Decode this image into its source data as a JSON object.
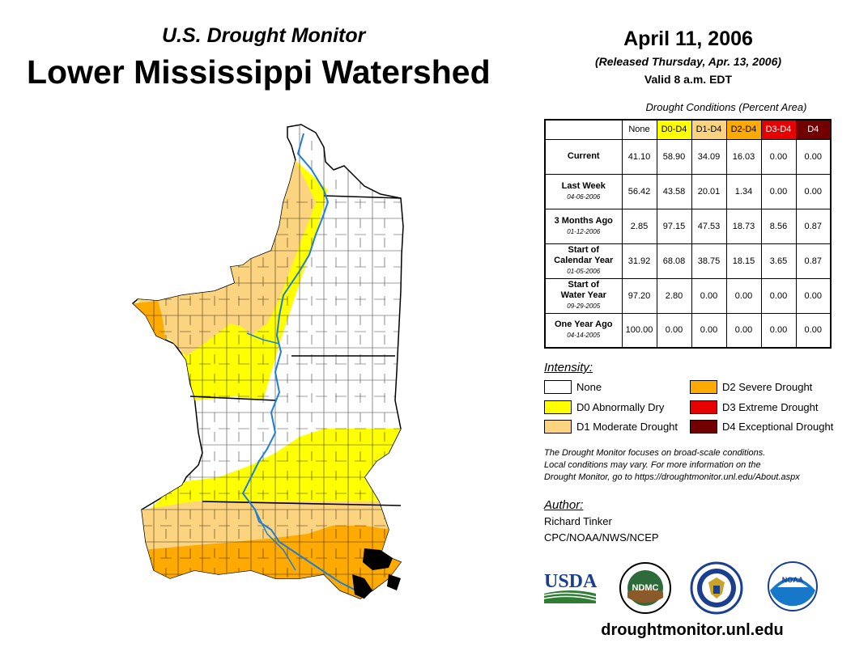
{
  "header": {
    "subtitle": "U.S. Drought Monitor",
    "title": "Lower Mississippi Watershed",
    "date": "April 11, 2006",
    "released": "(Released Thursday, Apr. 13, 2006)",
    "valid": "Valid 8 a.m. EDT"
  },
  "table": {
    "caption": "Drought Conditions (Percent Area)",
    "columns": [
      "None",
      "D0-D4",
      "D1-D4",
      "D2-D4",
      "D3-D4",
      "D4"
    ],
    "rows": [
      {
        "label": "Current",
        "date": "",
        "values": [
          "41.10",
          "58.90",
          "34.09",
          "16.03",
          "0.00",
          "0.00"
        ]
      },
      {
        "label": "Last Week",
        "date": "04-06-2006",
        "values": [
          "56.42",
          "43.58",
          "20.01",
          "1.34",
          "0.00",
          "0.00"
        ]
      },
      {
        "label": "3 Months Ago",
        "date": "01-12-2006",
        "values": [
          "2.85",
          "97.15",
          "47.53",
          "18.73",
          "8.56",
          "0.87"
        ]
      },
      {
        "label": "Start of Calendar Year",
        "date": "01-05-2006",
        "values": [
          "31.92",
          "68.08",
          "38.75",
          "18.15",
          "3.65",
          "0.87"
        ]
      },
      {
        "label": "Start of Water Year",
        "date": "09-29-2005",
        "values": [
          "97.20",
          "2.80",
          "0.00",
          "0.00",
          "0.00",
          "0.00"
        ]
      },
      {
        "label": "One Year Ago",
        "date": "04-14-2005",
        "values": [
          "100.00",
          "0.00",
          "0.00",
          "0.00",
          "0.00",
          "0.00"
        ]
      }
    ]
  },
  "legend": {
    "title": "Intensity:",
    "items": [
      {
        "label": "None",
        "color": "#ffffff"
      },
      {
        "label": "D0 Abnormally Dry",
        "color": "#ffff00"
      },
      {
        "label": "D1 Moderate Drought",
        "color": "#fcd37f"
      },
      {
        "label": "D2 Severe Drought",
        "color": "#ffaa00"
      },
      {
        "label": "D3 Extreme Drought",
        "color": "#e60000"
      },
      {
        "label": "D4 Exceptional Drought",
        "color": "#730000"
      }
    ]
  },
  "note": {
    "line1": "The Drought Monitor focuses on broad-scale conditions.",
    "line2": "Local conditions may vary. For more information on the",
    "line3": "Drought Monitor, go to https://droughtmonitor.unl.edu/About.aspx"
  },
  "author": {
    "title": "Author:",
    "name": "Richard Tinker",
    "org": "CPC/NOAA/NWS/NCEP"
  },
  "logos": {
    "usda": "USDA",
    "ndmc": "NDMC",
    "noaa": "NOAA"
  },
  "footer": {
    "url": "droughtmonitor.unl.edu"
  },
  "colors": {
    "river": "#1e7fd6",
    "water": "#000000"
  }
}
